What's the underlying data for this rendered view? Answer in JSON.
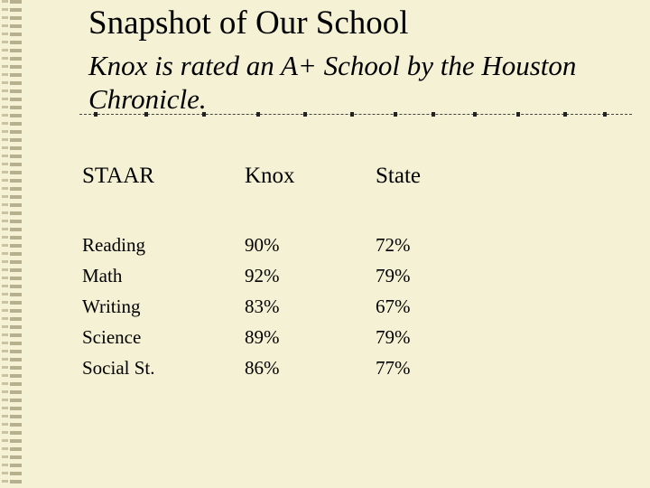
{
  "title": "Snapshot of Our School",
  "subtitle": "Knox is rated an A+ School by the Houston Chronicle.",
  "table": {
    "headers": [
      "STAAR",
      "Knox",
      "State"
    ],
    "rows": [
      {
        "subject": "Reading",
        "knox": "90%",
        "state": "72%"
      },
      {
        "subject": "Math",
        "knox": "92%",
        "state": "79%"
      },
      {
        "subject": "Writing",
        "knox": "83%",
        "state": "67%"
      },
      {
        "subject": "Science",
        "knox": "89%",
        "state": "79%"
      },
      {
        "subject": "Social St.",
        "knox": "86%",
        "state": "77%"
      }
    ]
  },
  "colors": {
    "background": "#f5f1d4",
    "text": "#000000"
  }
}
